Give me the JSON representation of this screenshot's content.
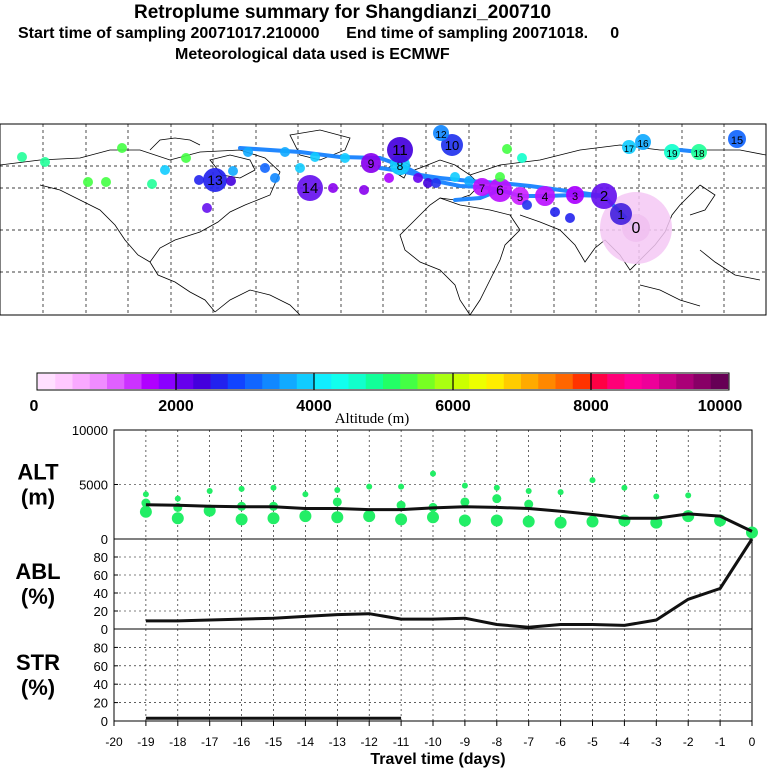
{
  "header": {
    "title": "Retroplume summary for Shangdianzi_200710",
    "sampling_line": "Start time of sampling 20071017.210000      End time of sampling 20071018.     0",
    "met_line": "Meteorological data used is ECMWF"
  },
  "colors": {
    "plume": "#ffd6ff",
    "track_line": "#2288ff",
    "scatter_green": "#22ee66",
    "mean_line": "#111111",
    "scale": [
      "#ffe0ff",
      "#ffc8ff",
      "#f9a9ff",
      "#f08cff",
      "#e060ff",
      "#cc33ff",
      "#b000ff",
      "#8a00ff",
      "#6600ee",
      "#4400dd",
      "#2222ee",
      "#1144ff",
      "#1166ff",
      "#1188ff",
      "#11aaff",
      "#11ccff",
      "#11eeff",
      "#11ffee",
      "#11ffcc",
      "#11ff99",
      "#22ff66",
      "#44ff44",
      "#77ff22",
      "#aaff11",
      "#ccff00",
      "#eeff00",
      "#ffee00",
      "#ffcc00",
      "#ffaa00",
      "#ff8800",
      "#ff6600",
      "#ff3300",
      "#ff0044",
      "#ff0077",
      "#ff0099",
      "#ee0099",
      "#cc0088",
      "#aa0077",
      "#880066",
      "#660055"
    ]
  },
  "map_markers": [
    {
      "label": "0",
      "color": "#f0c0f0"
    },
    {
      "label": "1",
      "color": "#4422dd"
    },
    {
      "label": "2",
      "color": "#6611ee"
    },
    {
      "label": "3",
      "color": "#aa00ff"
    },
    {
      "label": "4",
      "color": "#bb11ff"
    },
    {
      "label": "5",
      "color": "#cc22ff"
    },
    {
      "label": "6",
      "color": "#bb11ff"
    },
    {
      "label": "7",
      "color": "#bb11ff"
    },
    {
      "label": "8",
      "color": "#11ccff"
    },
    {
      "label": "9",
      "color": "#8800ee"
    },
    {
      "label": "10",
      "color": "#2233ee"
    },
    {
      "label": "11",
      "color": "#4400dd"
    },
    {
      "label": "12",
      "color": "#1188ff"
    },
    {
      "label": "13",
      "color": "#2222ee"
    },
    {
      "label": "14",
      "color": "#6611ee"
    },
    {
      "label": "15",
      "color": "#1166ff"
    },
    {
      "label": "16",
      "color": "#11aaff"
    },
    {
      "label": "17",
      "color": "#11ccff"
    },
    {
      "label": "18",
      "color": "#22ff99"
    },
    {
      "label": "19",
      "color": "#11ffcc"
    }
  ],
  "colorbar": {
    "ticks": [
      "0",
      "2000",
      "4000",
      "6000",
      "8000",
      "10000"
    ],
    "label": "Altitude (m)"
  },
  "chart_data": [
    {
      "type": "line",
      "panel": "ALT",
      "ylabel": "ALT\n(m)",
      "ylabel_line1": "ALT",
      "ylabel_line2": "(m)",
      "ylim": [
        0,
        10000
      ],
      "yticks": [
        "0",
        "5000",
        "10000"
      ],
      "yticks_values": [
        0,
        5000,
        10000
      ],
      "x": [
        -19,
        -18,
        -17,
        -16,
        -15,
        -14,
        -13,
        -12,
        -11,
        -10,
        -9,
        -8,
        -7,
        -6,
        -5,
        -4,
        -3,
        -2,
        -1,
        0
      ],
      "values": [
        3150,
        3100,
        3000,
        2950,
        2950,
        2800,
        2800,
        2700,
        2700,
        2850,
        2950,
        2900,
        2800,
        2550,
        2250,
        1900,
        1900,
        2300,
        2100,
        700
      ],
      "scatter": [
        {
          "x": -19,
          "ys": [
            4100,
            3300,
            2500
          ]
        },
        {
          "x": -18,
          "ys": [
            3700,
            2900,
            1900
          ]
        },
        {
          "x": -17,
          "ys": [
            4400,
            2600
          ]
        },
        {
          "x": -16,
          "ys": [
            4600,
            3000,
            1800
          ]
        },
        {
          "x": -15,
          "ys": [
            4700,
            3000,
            1900
          ]
        },
        {
          "x": -14,
          "ys": [
            4100,
            2100
          ]
        },
        {
          "x": -13,
          "ys": [
            4500,
            3400,
            2000
          ]
        },
        {
          "x": -12,
          "ys": [
            4800,
            2100
          ]
        },
        {
          "x": -11,
          "ys": [
            4800,
            3100,
            1800
          ]
        },
        {
          "x": -10,
          "ys": [
            6000,
            2900,
            2000
          ]
        },
        {
          "x": -9,
          "ys": [
            4900,
            3400,
            1700
          ]
        },
        {
          "x": -8,
          "ys": [
            4700,
            3700,
            1700
          ]
        },
        {
          "x": -7,
          "ys": [
            4400,
            3200,
            1600
          ]
        },
        {
          "x": -6,
          "ys": [
            4300,
            1500
          ]
        },
        {
          "x": -5,
          "ys": [
            5400,
            1600
          ]
        },
        {
          "x": -4,
          "ys": [
            4700,
            1700
          ]
        },
        {
          "x": -3,
          "ys": [
            3900,
            1500
          ]
        },
        {
          "x": -2,
          "ys": [
            4000,
            2100
          ]
        },
        {
          "x": -1,
          "ys": [
            1700
          ]
        },
        {
          "x": 0,
          "ys": [
            600
          ]
        }
      ]
    },
    {
      "type": "line",
      "panel": "ABL",
      "ylabel_line1": "ABL",
      "ylabel_line2": "(%)",
      "ylim": [
        0,
        100
      ],
      "yticks": [
        "0",
        "20",
        "40",
        "60",
        "80"
      ],
      "yticks_values": [
        0,
        20,
        40,
        60,
        80
      ],
      "x": [
        -19,
        -18,
        -17,
        -16,
        -15,
        -14,
        -13,
        -12,
        -11,
        -10,
        -9,
        -8,
        -7,
        -6,
        -5,
        -4,
        -3,
        -2,
        -1,
        0
      ],
      "values": [
        9,
        9,
        10,
        11,
        12,
        14,
        16,
        17,
        11,
        11,
        12,
        5,
        2,
        5,
        5,
        4,
        10,
        33,
        45,
        100
      ]
    },
    {
      "type": "line",
      "panel": "STR",
      "ylabel_line1": "STR",
      "ylabel_line2": "(%)",
      "ylim": [
        0,
        100
      ],
      "yticks": [
        "0",
        "20",
        "40",
        "60",
        "80"
      ],
      "yticks_values": [
        0,
        20,
        40,
        60,
        80
      ],
      "x": [
        -19,
        -18,
        -17,
        -16,
        -15,
        -14,
        -13,
        -12,
        -11
      ],
      "values": [
        3,
        3,
        3,
        3,
        3,
        3,
        3,
        3,
        3
      ]
    }
  ],
  "xaxis": {
    "label": "Travel time (days)",
    "ticks": [
      "-20",
      "-19",
      "-18",
      "-17",
      "-16",
      "-15",
      "-14",
      "-13",
      "-12",
      "-11",
      "-10",
      "-9",
      "-8",
      "-7",
      "-6",
      "-5",
      "-4",
      "-3",
      "-2",
      "-1",
      "0"
    ],
    "ticks_values": [
      -20,
      -19,
      -18,
      -17,
      -16,
      -15,
      -14,
      -13,
      -12,
      -11,
      -10,
      -9,
      -8,
      -7,
      -6,
      -5,
      -4,
      -3,
      -2,
      -1,
      0
    ]
  }
}
